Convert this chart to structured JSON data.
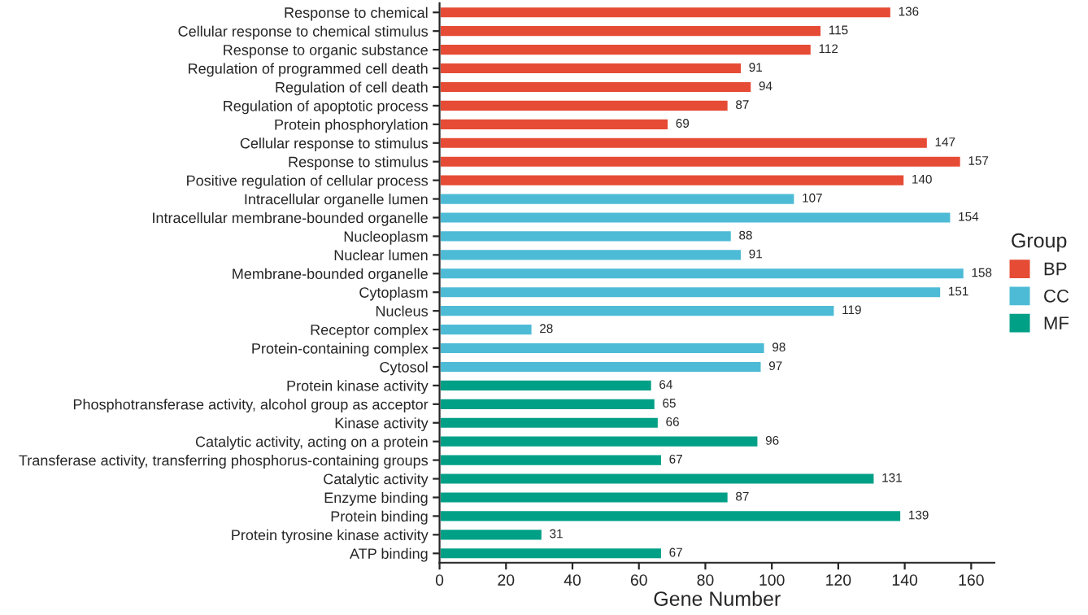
{
  "chart_data": {
    "type": "bar",
    "orientation": "horizontal",
    "xlabel": "Gene Number",
    "legend_title": "Group",
    "legend": "right",
    "grid": false,
    "data_labels": true,
    "xlim": [
      0,
      167
    ],
    "xticks": [
      0,
      20,
      40,
      60,
      80,
      100,
      120,
      140,
      160
    ],
    "categories": [
      "Response to chemical",
      "Cellular response to chemical stimulus",
      "Response to organic substance",
      "Regulation of programmed cell death",
      "Regulation of cell death",
      "Regulation of apoptotic process",
      "Protein phosphorylation",
      "Cellular response to stimulus",
      "Response to stimulus",
      "Positive regulation of cellular process",
      "Intracellular organelle lumen",
      "Intracellular membrane-bounded organelle",
      "Nucleoplasm",
      "Nuclear lumen",
      "Membrane-bounded organelle",
      "Cytoplasm",
      "Nucleus",
      "Receptor complex",
      "Protein-containing complex",
      "Cytosol",
      "Protein kinase activity",
      "Phosphotransferase activity, alcohol group as acceptor",
      "Kinase activity",
      "Catalytic activity, acting on a protein",
      "Transferase activity, transferring phosphorus-containing groups",
      "Catalytic activity",
      "Enzyme binding",
      "Protein binding",
      "Protein tyrosine kinase activity",
      "ATP binding"
    ],
    "series": [
      {
        "name": "BP",
        "color": "#e64b35",
        "values": [
          136,
          115,
          112,
          91,
          94,
          87,
          69,
          147,
          157,
          140,
          null,
          null,
          null,
          null,
          null,
          null,
          null,
          null,
          null,
          null,
          null,
          null,
          null,
          null,
          null,
          null,
          null,
          null,
          null,
          null
        ]
      },
      {
        "name": "CC",
        "color": "#4dbbd5",
        "values": [
          null,
          null,
          null,
          null,
          null,
          null,
          null,
          null,
          null,
          null,
          107,
          154,
          88,
          91,
          158,
          151,
          119,
          28,
          98,
          97,
          null,
          null,
          null,
          null,
          null,
          null,
          null,
          null,
          null,
          null
        ]
      },
      {
        "name": "MF",
        "color": "#00a087",
        "values": [
          null,
          null,
          null,
          null,
          null,
          null,
          null,
          null,
          null,
          null,
          null,
          null,
          null,
          null,
          null,
          null,
          null,
          null,
          null,
          null,
          64,
          65,
          66,
          96,
          67,
          131,
          87,
          139,
          31,
          67
        ]
      }
    ]
  }
}
